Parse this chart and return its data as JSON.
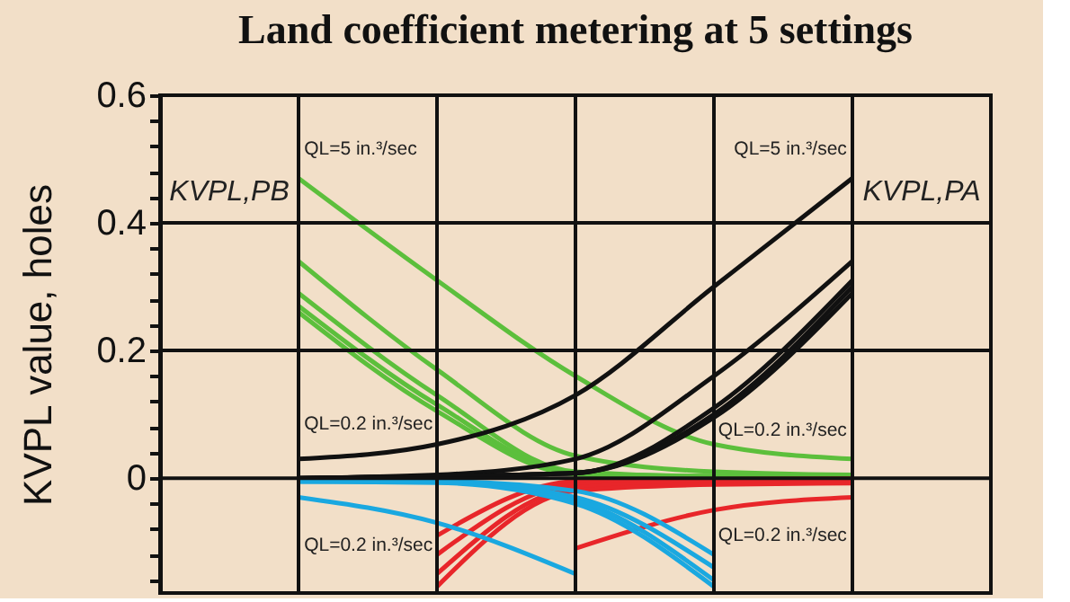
{
  "chart_data": {
    "type": "line",
    "title": "Land coefficient metering at 5 settings",
    "ylabel": "KVPL value, holes",
    "categories": [
      null,
      null,
      null,
      null,
      null,
      null,
      null
    ],
    "series": [
      {
        "color": "#5cbf3c",
        "values": [
          null,
          0.47,
          0.31,
          0.16,
          0.053,
          0.03,
          null
        ]
      },
      {
        "color": "#5cbf3c",
        "values": [
          null,
          0.34,
          0.17,
          0.035,
          0.01,
          0.005,
          null
        ]
      },
      {
        "color": "#5cbf3c",
        "values": [
          null,
          0.29,
          0.13,
          0.01,
          0.003,
          0.003,
          null
        ]
      },
      {
        "color": "#5cbf3c",
        "values": [
          null,
          0.27,
          0.115,
          0.008,
          0.003,
          0.003,
          null
        ]
      },
      {
        "color": "#5cbf3c",
        "values": [
          null,
          0.26,
          0.105,
          0.006,
          0.003,
          0.003,
          null
        ]
      },
      {
        "color": "#111111",
        "values": [
          null,
          0.03,
          0.053,
          0.13,
          0.3,
          0.47,
          null
        ]
      },
      {
        "color": "#111111",
        "values": [
          null,
          0.0,
          0.005,
          0.03,
          0.16,
          0.34,
          null
        ]
      },
      {
        "color": "#111111",
        "values": [
          null,
          0.0,
          0.003,
          0.008,
          0.11,
          0.31,
          null
        ]
      },
      {
        "color": "#111111",
        "values": [
          null,
          0.0,
          0.003,
          0.008,
          0.1,
          0.3,
          null
        ]
      },
      {
        "color": "#111111",
        "values": [
          null,
          0.0,
          0.003,
          0.008,
          0.095,
          0.29,
          null
        ]
      },
      {
        "color": "#e8262a",
        "values": [
          null,
          null,
          -0.09,
          -0.005,
          -0.002,
          -0.001,
          null
        ]
      },
      {
        "color": "#e8262a",
        "values": [
          null,
          null,
          -0.12,
          -0.01,
          -0.004,
          -0.003,
          null
        ]
      },
      {
        "color": "#e8262a",
        "values": [
          null,
          null,
          -0.15,
          -0.015,
          -0.006,
          -0.005,
          null
        ]
      },
      {
        "color": "#e8262a",
        "values": [
          null,
          null,
          -0.17,
          -0.02,
          -0.01,
          -0.008,
          null
        ]
      },
      {
        "color": "#e8262a",
        "values": [
          null,
          null,
          null,
          -0.11,
          -0.05,
          -0.03,
          null
        ]
      },
      {
        "color": "#1aa8e0",
        "values": [
          null,
          -0.03,
          -0.07,
          -0.15,
          null,
          null,
          null
        ]
      },
      {
        "color": "#1aa8e0",
        "values": [
          null,
          -0.005,
          -0.005,
          -0.02,
          -0.12,
          null,
          null
        ]
      },
      {
        "color": "#1aa8e0",
        "values": [
          null,
          -0.005,
          -0.005,
          -0.03,
          -0.14,
          null,
          null
        ]
      },
      {
        "color": "#1aa8e0",
        "values": [
          null,
          -0.005,
          -0.006,
          -0.035,
          -0.16,
          null,
          null
        ]
      },
      {
        "color": "#1aa8e0",
        "values": [
          null,
          -0.005,
          -0.007,
          -0.04,
          -0.17,
          null,
          null
        ]
      }
    ],
    "ylim": [
      -0.18,
      0.6
    ],
    "yticks": [
      0,
      {
        "value": 0.04,
        "label": null
      },
      {
        "value": 0.08,
        "label": null
      },
      {
        "value": 0.12,
        "label": null
      },
      {
        "value": 0.16,
        "label": null
      },
      0.2,
      {
        "value": 0.24,
        "label": null
      },
      {
        "value": 0.28,
        "label": null
      },
      {
        "value": 0.32,
        "label": null
      },
      {
        "value": 0.36,
        "label": null
      },
      0.4,
      {
        "value": 0.44,
        "label": null
      },
      {
        "value": 0.48,
        "label": null
      },
      {
        "value": 0.52,
        "label": null
      },
      {
        "value": 0.56,
        "label": null
      },
      0.6,
      {
        "value": -0.04,
        "label": null
      },
      {
        "value": -0.08,
        "label": null
      },
      {
        "value": -0.12,
        "label": null
      },
      {
        "value": -0.16,
        "label": null
      }
    ],
    "annotations": [
      "KVPL,PB",
      "KVPL,PA",
      "QL=5 in.³/sec",
      "QL=5 in.³/sec",
      "QL=0.2 in.³/sec",
      "QL=0.2 in.³/sec",
      "QL=0.2 in.³/sec",
      "QL=0.2 in.³/sec"
    ],
    "grid": true,
    "legend": false,
    "tick_labels": "y",
    "marker": "none",
    "line_style": "solid"
  }
}
